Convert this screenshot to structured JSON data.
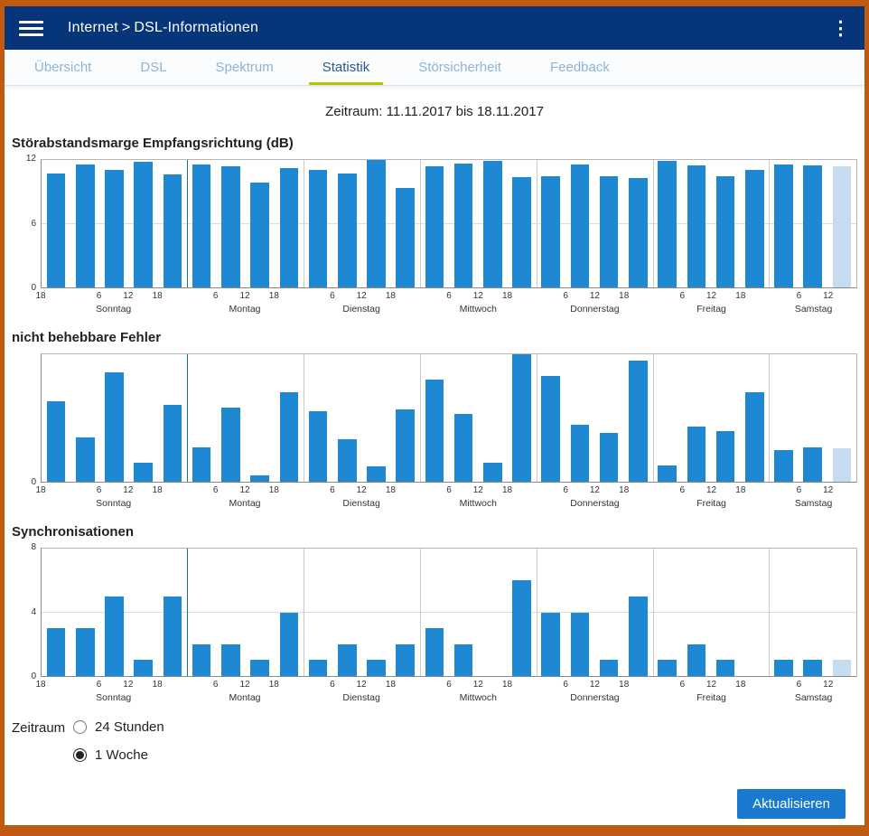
{
  "window": {
    "frame_color": "#c05a11"
  },
  "header": {
    "section": "Internet",
    "separator": ">",
    "page": "DSL-Informationen",
    "bg_color": "#06357a"
  },
  "tabs": [
    {
      "label": "Übersicht",
      "active": false
    },
    {
      "label": "DSL",
      "active": false
    },
    {
      "label": "Spektrum",
      "active": false
    },
    {
      "label": "Statistik",
      "active": true
    },
    {
      "label": "Störsicherheit",
      "active": false
    },
    {
      "label": "Feedback",
      "active": false
    }
  ],
  "period_text": "Zeitraum: 11.11.2017 bis 18.11.2017",
  "xaxis": {
    "slots": 28,
    "slot_hours": 6,
    "tick_positions": [
      {
        "pos": 0,
        "label": "18"
      },
      {
        "pos": 2,
        "label": "6"
      },
      {
        "pos": 3,
        "label": "12"
      },
      {
        "pos": 4,
        "label": "18"
      },
      {
        "pos": 6,
        "label": "6"
      },
      {
        "pos": 7,
        "label": "12"
      },
      {
        "pos": 8,
        "label": "18"
      },
      {
        "pos": 10,
        "label": "6"
      },
      {
        "pos": 11,
        "label": "12"
      },
      {
        "pos": 12,
        "label": "18"
      },
      {
        "pos": 14,
        "label": "6"
      },
      {
        "pos": 15,
        "label": "12"
      },
      {
        "pos": 16,
        "label": "18"
      },
      {
        "pos": 18,
        "label": "6"
      },
      {
        "pos": 19,
        "label": "12"
      },
      {
        "pos": 20,
        "label": "18"
      },
      {
        "pos": 22,
        "label": "6"
      },
      {
        "pos": 23,
        "label": "12"
      },
      {
        "pos": 24,
        "label": "18"
      },
      {
        "pos": 26,
        "label": "6"
      },
      {
        "pos": 27,
        "label": "12"
      }
    ],
    "day_separators": [
      5,
      9,
      13,
      17,
      21,
      25
    ],
    "highlight_separator": 5,
    "day_labels": [
      {
        "label": "Sonntag",
        "center": 2.5
      },
      {
        "label": "Montag",
        "center": 7
      },
      {
        "label": "Dienstag",
        "center": 11
      },
      {
        "label": "Mittwoch",
        "center": 15
      },
      {
        "label": "Donnerstag",
        "center": 19
      },
      {
        "label": "Freitag",
        "center": 23
      },
      {
        "label": "Samstag",
        "center": 26.5
      }
    ]
  },
  "chart_data": [
    {
      "type": "bar",
      "title": "Störabstandsmarge Empfangsrichtung (dB)",
      "ylabel": "dB",
      "ylim": [
        0,
        12
      ],
      "yticks": [
        0,
        6,
        12
      ],
      "bar_color": "#1e88d2",
      "incomplete_bar_color": "#c5dcf0",
      "last_bar_incomplete": true,
      "values": [
        10.7,
        11.6,
        11.1,
        11.8,
        10.6,
        11.6,
        11.4,
        9.9,
        11.2,
        11.1,
        10.7,
        12,
        9.4,
        11.4,
        11.7,
        11.9,
        10.4,
        10.5,
        11.6,
        10.5,
        10.3,
        11.9,
        11.5,
        10.5,
        11.1,
        11.6,
        11.5,
        11.4
      ]
    },
    {
      "type": "bar",
      "title": "nicht behebbare Fehler",
      "ylabel": "",
      "ylim": [
        0,
        10
      ],
      "yticks": [
        0
      ],
      "bar_color": "#1e88d2",
      "incomplete_bar_color": "#c5dcf0",
      "last_bar_incomplete": true,
      "values": [
        6.3,
        3.5,
        8.6,
        1.5,
        6,
        2.7,
        5.8,
        0.5,
        7,
        5.5,
        3.3,
        1.2,
        5.7,
        8,
        5.3,
        1.5,
        10,
        8.3,
        4.5,
        3.8,
        9.5,
        1.3,
        4.3,
        4,
        7,
        2.5,
        2.7,
        2.6
      ]
    },
    {
      "type": "bar",
      "title": "Synchronisationen",
      "ylabel": "",
      "ylim": [
        0,
        8
      ],
      "yticks": [
        0,
        4,
        8
      ],
      "bar_color": "#1e88d2",
      "incomplete_bar_color": "#c5dcf0",
      "last_bar_incomplete": true,
      "values": [
        3,
        3,
        5,
        1,
        5,
        2,
        2,
        1,
        4,
        1,
        2,
        1,
        2,
        3,
        2,
        0,
        6,
        4,
        4,
        1,
        5,
        1,
        2,
        1,
        0,
        1,
        1,
        1
      ]
    }
  ],
  "zeitraum_control": {
    "label": "Zeitraum",
    "options": [
      {
        "label": "24 Stunden",
        "selected": false
      },
      {
        "label": "1 Woche",
        "selected": true
      }
    ]
  },
  "footer": {
    "refresh_label": "Aktualisieren"
  }
}
